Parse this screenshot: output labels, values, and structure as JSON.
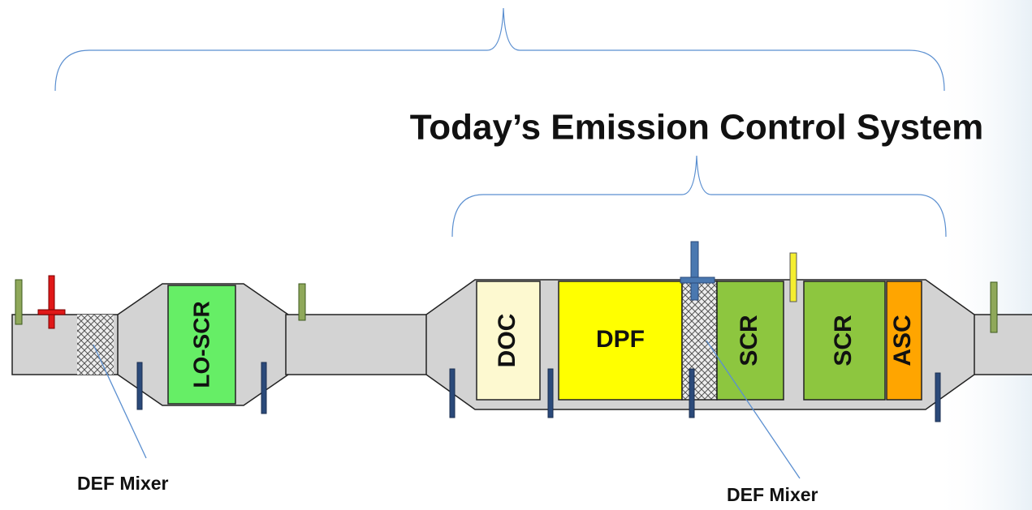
{
  "title": "Today’s Emission Control System",
  "components": [
    "LO-SCR",
    "DOC",
    "DPF",
    "SCR",
    "SCR",
    "ASC"
  ],
  "mixer_labels": [
    "DEF Mixer",
    "DEF Mixer"
  ]
}
